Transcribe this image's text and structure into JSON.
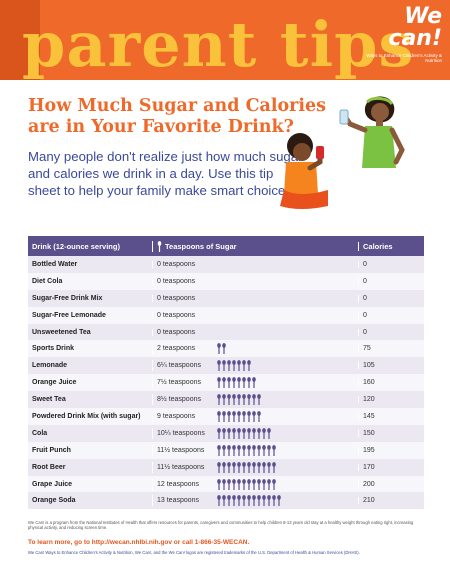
{
  "banner": {
    "title": "parent tips"
  },
  "logo": {
    "name": "We can!",
    "tagline": "Ways to Enhance Children's Activity & Nutrition"
  },
  "headline": "How Much Sugar and Calories are in Your Favorite Drink?",
  "intro": "Many people don't realize just how much sugar and calories we drink in a day. Use this tip sheet to help your family make smart choices.",
  "table": {
    "headers": {
      "drink": "Drink (12-ounce serving)",
      "sugar": "Teaspoons of Sugar",
      "calories": "Calories"
    },
    "rows": [
      {
        "drink": "Bottled Water",
        "sugar": "0 teaspoons",
        "spoons": 0,
        "calories": "0"
      },
      {
        "drink": "Diet Cola",
        "sugar": "0 teaspoons",
        "spoons": 0,
        "calories": "0"
      },
      {
        "drink": "Sugar-Free Drink Mix",
        "sugar": "0 teaspoons",
        "spoons": 0,
        "calories": "0"
      },
      {
        "drink": "Sugar-Free Lemonade",
        "sugar": "0 teaspoons",
        "spoons": 0,
        "calories": "0"
      },
      {
        "drink": "Unsweetened Tea",
        "sugar": "0 teaspoons",
        "spoons": 0,
        "calories": "0"
      },
      {
        "drink": "Sports Drink",
        "sugar": "2 teaspoons",
        "spoons": 2,
        "calories": "75"
      },
      {
        "drink": "Lemonade",
        "sugar": "6¼ teaspoons",
        "spoons": 7,
        "calories": "105"
      },
      {
        "drink": "Orange Juice",
        "sugar": "7½ teaspoons",
        "spoons": 8,
        "calories": "160"
      },
      {
        "drink": "Sweet Tea",
        "sugar": "8½ teaspoons",
        "spoons": 9,
        "calories": "120"
      },
      {
        "drink": "Powdered Drink Mix (with sugar)",
        "sugar": "9 teaspoons",
        "spoons": 9,
        "calories": "145"
      },
      {
        "drink": "Cola",
        "sugar": "10¼ teaspoons",
        "spoons": 11,
        "calories": "150"
      },
      {
        "drink": "Fruit Punch",
        "sugar": "11½ teaspoons",
        "spoons": 12,
        "calories": "195"
      },
      {
        "drink": "Root Beer",
        "sugar": "11½ teaspoons",
        "spoons": 12,
        "calories": "170"
      },
      {
        "drink": "Grape Juice",
        "sugar": "12 teaspoons",
        "spoons": 12,
        "calories": "200"
      },
      {
        "drink": "Orange Soda",
        "sugar": "13 teaspoons",
        "spoons": 13,
        "calories": "210"
      }
    ]
  },
  "footnote": "We Can! is a program from the National Institutes of Health that offers resources for parents, caregivers and communities to help children 8-13 years old stay at a healthy weight through eating right, increasing physical activity, and reducing screen time.",
  "cta": "To learn more, go to http://wecan.nhlbi.nih.gov or call 1-866-35-WECAN.",
  "trademark": "We Can! Ways to Enhance Children's Activity & Nutrition, We Can!, and the We Can! logos are registered trademarks of the U.S. Department of Health & Human Services (DHHS).",
  "colors": {
    "orange": "#ef6a2a",
    "gold": "#f9c23a",
    "purple": "#5b4f8c",
    "navy": "#3a4a9a"
  }
}
